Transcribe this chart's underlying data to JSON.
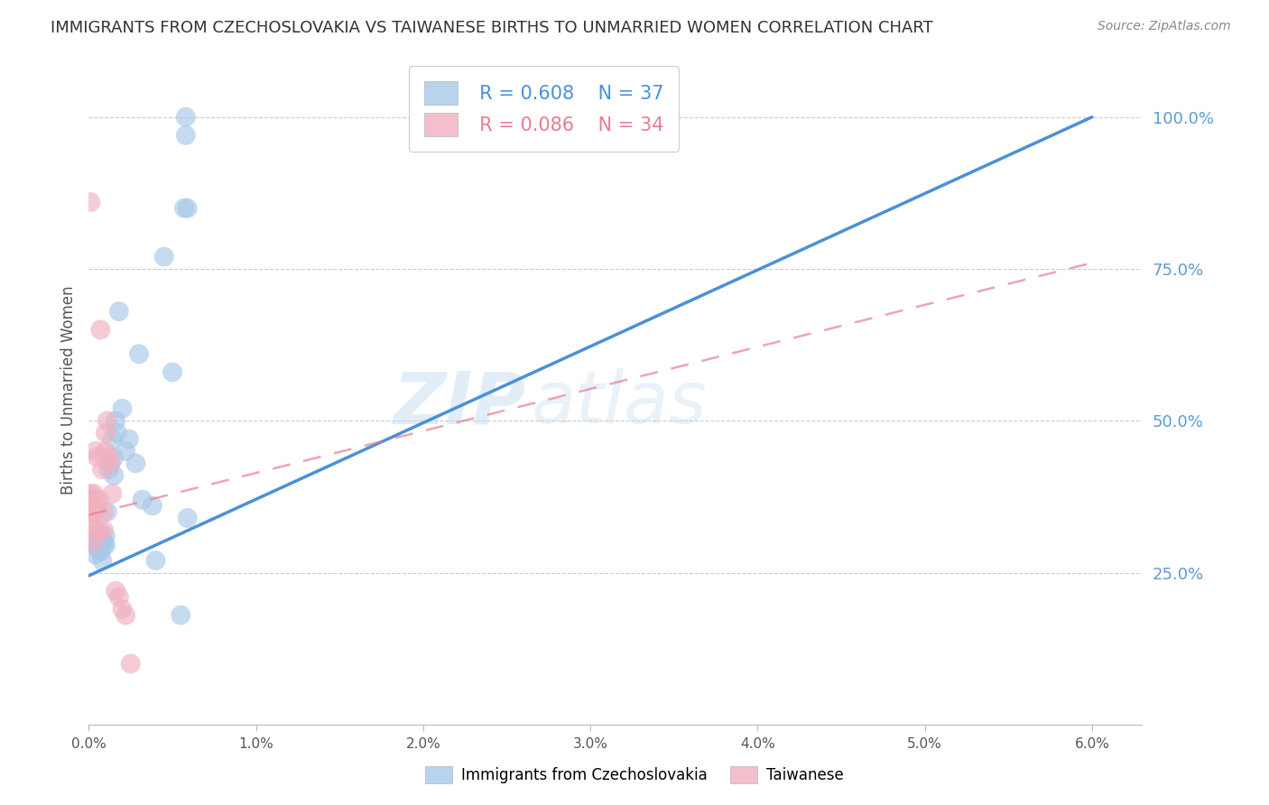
{
  "title": "IMMIGRANTS FROM CZECHOSLOVAKIA VS TAIWANESE BIRTHS TO UNMARRIED WOMEN CORRELATION CHART",
  "source": "Source: ZipAtlas.com",
  "ylabel": "Births to Unmarried Women",
  "y_ticks": [
    "100.0%",
    "75.0%",
    "50.0%",
    "25.0%"
  ],
  "y_tick_vals": [
    1.0,
    0.75,
    0.5,
    0.25
  ],
  "x_tick_vals": [
    0.0,
    0.01,
    0.02,
    0.03,
    0.04,
    0.05,
    0.06
  ],
  "legend_blue_r": "R = 0.608",
  "legend_blue_n": "N = 37",
  "legend_pink_r": "R = 0.086",
  "legend_pink_n": "N = 34",
  "legend_blue_label": "Immigrants from Czechoslovakia",
  "legend_pink_label": "Taiwanese",
  "watermark_zip": "ZIP",
  "watermark_atlas": "atlas",
  "blue_color": "#a8c8e8",
  "pink_color": "#f0b0c0",
  "blue_line_color": "#4a90d9",
  "pink_line_color": "#e87d90",
  "title_color": "#333333",
  "right_axis_color": "#5b9bd5",
  "background_color": "#ffffff",
  "grid_color": "#cccccc",
  "blue_scatter_x": [
    0.0003,
    0.0004,
    0.0005,
    0.0006,
    0.0006,
    0.0007,
    0.0007,
    0.0008,
    0.0009,
    0.0009,
    0.001,
    0.001,
    0.0011,
    0.0012,
    0.0013,
    0.0014,
    0.0015,
    0.0015,
    0.0016,
    0.0017,
    0.0018,
    0.002,
    0.0022,
    0.0024,
    0.003,
    0.0028,
    0.0032,
    0.0038,
    0.004,
    0.0045,
    0.005,
    0.0055,
    0.0057,
    0.0058,
    0.0058,
    0.0059,
    0.0059
  ],
  "blue_scatter_y": [
    0.3,
    0.28,
    0.29,
    0.31,
    0.3,
    0.285,
    0.31,
    0.27,
    0.3,
    0.295,
    0.31,
    0.295,
    0.35,
    0.42,
    0.43,
    0.47,
    0.44,
    0.41,
    0.5,
    0.48,
    0.68,
    0.52,
    0.45,
    0.47,
    0.61,
    0.43,
    0.37,
    0.36,
    0.27,
    0.77,
    0.58,
    0.18,
    0.85,
    0.97,
    1.0,
    0.34,
    0.85
  ],
  "pink_scatter_x": [
    0.0001,
    0.0001,
    0.0001,
    0.0002,
    0.0002,
    0.0002,
    0.0002,
    0.0002,
    0.0003,
    0.0003,
    0.0003,
    0.0003,
    0.0004,
    0.0004,
    0.0004,
    0.0005,
    0.0005,
    0.0006,
    0.0006,
    0.0007,
    0.0008,
    0.0009,
    0.0009,
    0.001,
    0.001,
    0.0011,
    0.0012,
    0.0013,
    0.0014,
    0.0016,
    0.0018,
    0.002,
    0.0022,
    0.0025
  ],
  "pink_scatter_y": [
    0.86,
    0.38,
    0.36,
    0.37,
    0.37,
    0.36,
    0.35,
    0.33,
    0.38,
    0.37,
    0.35,
    0.3,
    0.45,
    0.35,
    0.32,
    0.44,
    0.36,
    0.37,
    0.32,
    0.65,
    0.42,
    0.35,
    0.32,
    0.48,
    0.45,
    0.5,
    0.44,
    0.43,
    0.38,
    0.22,
    0.21,
    0.19,
    0.18,
    0.1
  ],
  "blue_line_x": [
    0.0,
    0.06
  ],
  "blue_line_y": [
    0.245,
    1.0
  ],
  "pink_line_x": [
    0.0,
    0.06
  ],
  "pink_line_y": [
    0.345,
    0.76
  ],
  "xlim": [
    0.0,
    0.063
  ],
  "ylim": [
    0.0,
    1.1
  ],
  "x_tick_labels": [
    "0.0%",
    "1.0%",
    "2.0%",
    "3.0%",
    "4.0%",
    "5.0%",
    "6.0%"
  ]
}
